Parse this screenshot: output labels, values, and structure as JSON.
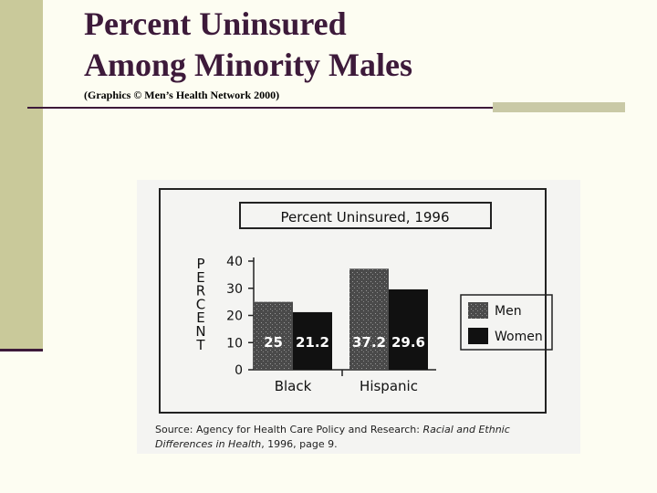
{
  "slide": {
    "title_line1": "Percent Uninsured",
    "title_line2": "Among Minority Males",
    "subtitle": "(Graphics © Men’s Health Network 2000)"
  },
  "colors": {
    "title": "#3d1a3a",
    "band": "#c9c99a",
    "men_bar": "#555555",
    "women_bar": "#111111"
  },
  "chart_data": {
    "type": "bar",
    "title": "Percent Uninsured, 1996",
    "ylabel": "PERCENT",
    "xlabel": "",
    "ylim": [
      0,
      40
    ],
    "yticks": [
      0,
      10,
      20,
      30,
      40
    ],
    "categories": [
      "Black",
      "Hispanic"
    ],
    "series": [
      {
        "name": "Men",
        "values": [
          25,
          37.2
        ],
        "labels": [
          "25",
          "37.2"
        ]
      },
      {
        "name": "Women",
        "values": [
          21.2,
          29.6
        ],
        "labels": [
          "21.2",
          "29.6"
        ]
      }
    ],
    "legend_position": "right",
    "source_prefix": "Source: Agency for Health Care Policy and Research: ",
    "source_title_1": "Racial and Ethnic",
    "source_title_2": "Differences in Health",
    "source_suffix": ", 1996, page 9."
  }
}
